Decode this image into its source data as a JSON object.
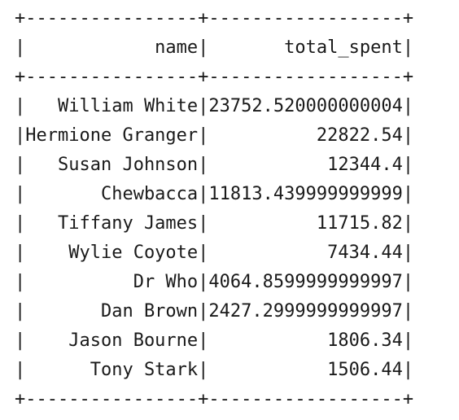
{
  "output": {
    "lines": [
      "+----------------+------------------+",
      "|            name|       total_spent|",
      "+----------------+------------------+",
      "|   William White|23752.520000000004|",
      "|Hermione Granger|          22822.54|",
      "|   Susan Johnson|           12344.4|",
      "|       Chewbacca|11813.439999999999|",
      "|   Tiffany James|          11715.82|",
      "|    Wylie Coyote|           7434.44|",
      "|          Dr Who|4064.8599999999997|",
      "|       Dan Brown|2427.2999999999997|",
      "|    Jason Bourne|           1806.34|",
      "|      Tony Stark|           1506.44|",
      "+----------------+------------------+"
    ]
  },
  "table": {
    "columns": [
      "name",
      "total_spent"
    ],
    "rows": [
      [
        "William White",
        "23752.520000000004"
      ],
      [
        "Hermione Granger",
        "22822.54"
      ],
      [
        "Susan Johnson",
        "12344.4"
      ],
      [
        "Chewbacca",
        "11813.439999999999"
      ],
      [
        "Tiffany James",
        "11715.82"
      ],
      [
        "Wylie Coyote",
        "7434.44"
      ],
      [
        "Dr Who",
        "4064.8599999999997"
      ],
      [
        "Dan Brown",
        "2427.2999999999997"
      ],
      [
        "Jason Bourne",
        "1806.34"
      ],
      [
        "Tony Stark",
        "1506.44"
      ]
    ]
  }
}
